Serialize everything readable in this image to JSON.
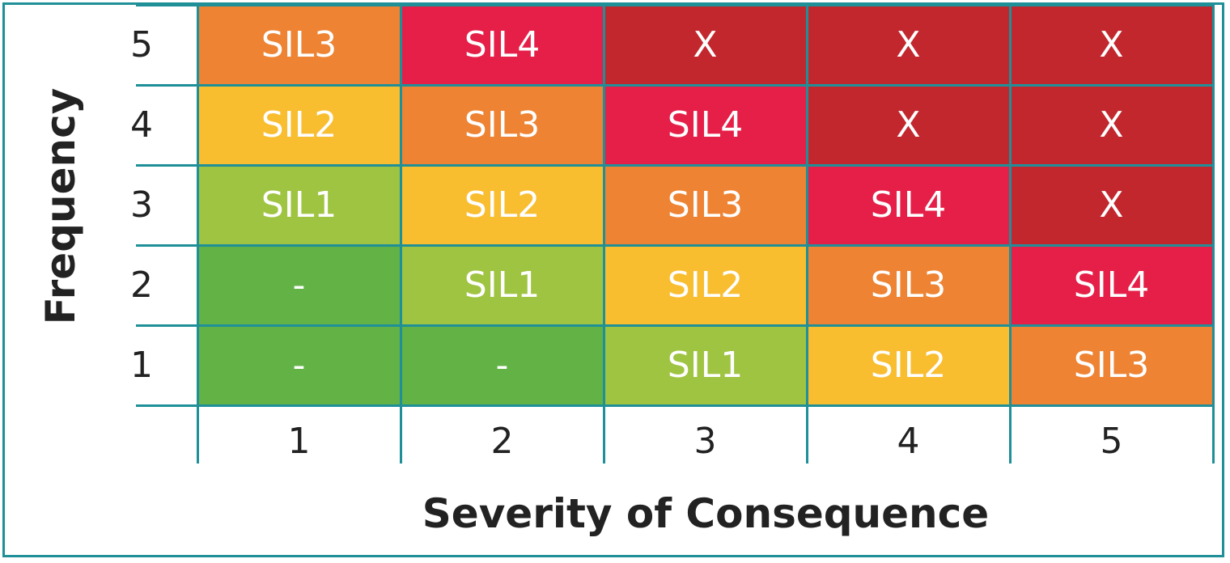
{
  "chart_data": {
    "type": "heatmap",
    "xlabel": "Severity of Consequence",
    "ylabel": "Frequency",
    "x_categories": [
      "1",
      "2",
      "3",
      "4",
      "5"
    ],
    "y_categories": [
      "5",
      "4",
      "3",
      "2",
      "1"
    ],
    "cells": [
      [
        "SIL3",
        "SIL4",
        "X",
        "X",
        "X"
      ],
      [
        "SIL2",
        "SIL3",
        "SIL4",
        "X",
        "X"
      ],
      [
        "SIL1",
        "SIL2",
        "SIL3",
        "SIL4",
        "X"
      ],
      [
        "-",
        "SIL1",
        "SIL2",
        "SIL3",
        "SIL4"
      ],
      [
        "-",
        "-",
        "SIL1",
        "SIL2",
        "SIL3"
      ]
    ],
    "level_colors": {
      "-": "#62b246",
      "SIL1": "#9fc442",
      "SIL2": "#f9bd30",
      "SIL3": "#ee8333",
      "SIL4": "#e51f47",
      "X": "#c2272e"
    },
    "grid_color": "#1f8f98"
  }
}
